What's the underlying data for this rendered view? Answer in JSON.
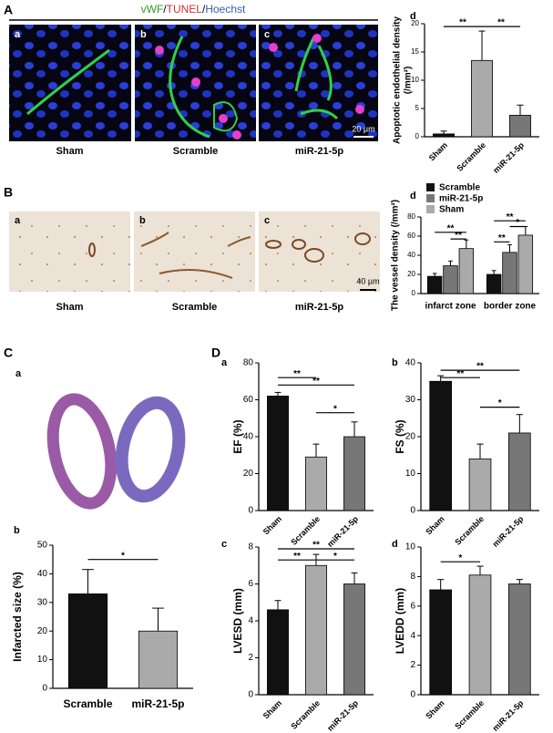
{
  "figure": {
    "A": {
      "letter": "A",
      "stain": [
        "vWF",
        "/",
        "TUNEL",
        "/",
        "Hoechst"
      ],
      "stain_colors": [
        "#2a9d2a",
        "#000000",
        "#d0302f",
        "#000000",
        "#2f5fb3"
      ],
      "images": [
        {
          "letter": "a",
          "caption": "Sham"
        },
        {
          "letter": "b",
          "caption": "Scramble"
        },
        {
          "letter": "c",
          "caption": "miR-21-5p"
        }
      ],
      "scale": "20 µm"
    },
    "B": {
      "letter": "B",
      "images": [
        {
          "letter": "a",
          "caption": "Sham"
        },
        {
          "letter": "b",
          "caption": "Scramble"
        },
        {
          "letter": "c",
          "caption": "miR-21-5p"
        }
      ],
      "scale": "40 µm"
    },
    "C": {
      "letter": "C",
      "image_letter": "a"
    },
    "D": {
      "letter": "D"
    }
  },
  "chart_data": [
    {
      "type": "bar",
      "panel": "d",
      "ylabel": [
        "Apoptotic endothelial density",
        "(/mm²)"
      ],
      "categories": [
        "Sham",
        "Scramble",
        "miR-21-5p"
      ],
      "values": [
        0.5,
        13.5,
        3.8
      ],
      "errors": [
        0.5,
        5.2,
        1.8
      ],
      "colors": [
        "#111111",
        "#aaaaaa",
        "#777777"
      ],
      "ylim": [
        0,
        20
      ],
      "yticks": [
        0,
        5,
        10,
        15,
        20
      ],
      "xlabel_rotate": true,
      "annotations": [
        {
          "text": "**",
          "from": 0,
          "to": 1,
          "y": 19.5
        },
        {
          "text": "**",
          "from": 1,
          "to": 2,
          "y": 19.5
        }
      ]
    },
    {
      "type": "grouped_bar",
      "panel": "d",
      "ylabel": "The vessel density  (/mm²)",
      "categories": [
        "infarct zone",
        "border zone"
      ],
      "series": [
        {
          "name": "Scramble",
          "color": "#111111",
          "values": [
            18,
            20
          ],
          "errors": [
            3,
            4
          ]
        },
        {
          "name": "miR-21-5p",
          "color": "#777777",
          "values": [
            29,
            43
          ],
          "errors": [
            5,
            8
          ]
        },
        {
          "name": "Sham",
          "color": "#aaaaaa",
          "values": [
            47,
            61
          ],
          "errors": [
            9,
            9
          ]
        }
      ],
      "ylim": [
        0,
        80
      ],
      "yticks": [
        0,
        20,
        40,
        60,
        80
      ],
      "xlabel_rotate": false,
      "legend": "top-left",
      "annotations": [
        {
          "text": "**",
          "group": 0,
          "from": 0,
          "to": 2,
          "y": 64
        },
        {
          "text": "**",
          "group": 0,
          "from": 1,
          "to": 2,
          "y": 57
        },
        {
          "text": "**",
          "group": 1,
          "from": 0,
          "to": 1,
          "y": 54
        },
        {
          "text": "**",
          "group": 1,
          "from": 0,
          "to": 2,
          "y": 76
        },
        {
          "text": "*",
          "group": 1,
          "from": 1,
          "to": 2,
          "y": 70
        }
      ]
    },
    {
      "type": "bar",
      "panel": "b",
      "ylabel": "Infarcted size (%)",
      "categories": [
        "Scramble",
        "miR-21-5p"
      ],
      "values": [
        33,
        20
      ],
      "errors": [
        8.5,
        8
      ],
      "colors": [
        "#111111",
        "#aaaaaa"
      ],
      "ylim": [
        0,
        50
      ],
      "yticks": [
        0,
        10,
        20,
        30,
        40,
        50
      ],
      "xlabel_rotate": false,
      "annotations": [
        {
          "text": "*",
          "from": 0,
          "to": 1,
          "y": 45
        }
      ]
    },
    {
      "type": "bar",
      "panel": "a",
      "ylabel": "EF (%)",
      "categories": [
        "Sham",
        "Scramble",
        "miR-21-5p"
      ],
      "values": [
        62,
        29,
        40
      ],
      "errors": [
        2,
        7,
        8
      ],
      "colors": [
        "#111111",
        "#aaaaaa",
        "#777777"
      ],
      "ylim": [
        0,
        80
      ],
      "yticks": [
        0,
        20,
        40,
        60,
        80
      ],
      "xlabel_rotate": true,
      "annotations": [
        {
          "text": "**",
          "from": 0,
          "to": 1,
          "y": 72
        },
        {
          "text": "**",
          "from": 0,
          "to": 2,
          "y": 68
        },
        {
          "text": "*",
          "from": 1,
          "to": 2,
          "y": 53
        }
      ]
    },
    {
      "type": "bar",
      "panel": "b",
      "ylabel": "FS (%)",
      "categories": [
        "Sham",
        "Scramble",
        "miR-21-5p"
      ],
      "values": [
        35,
        14,
        21
      ],
      "errors": [
        1.5,
        4,
        5
      ],
      "colors": [
        "#111111",
        "#aaaaaa",
        "#777777"
      ],
      "ylim": [
        0,
        40
      ],
      "yticks": [
        0,
        10,
        20,
        30,
        40
      ],
      "xlabel_rotate": true,
      "annotations": [
        {
          "text": "**",
          "from": 0,
          "to": 1,
          "y": 36
        },
        {
          "text": "**",
          "from": 0,
          "to": 2,
          "y": 38
        },
        {
          "text": "*",
          "from": 1,
          "to": 2,
          "y": 28
        }
      ]
    },
    {
      "type": "bar",
      "panel": "c",
      "ylabel": "LVESD (mm)",
      "categories": [
        "Sham",
        "Scramble",
        "miR-21-5p"
      ],
      "values": [
        4.6,
        7,
        6
      ],
      "errors": [
        0.5,
        0.6,
        0.6
      ],
      "colors": [
        "#111111",
        "#aaaaaa",
        "#777777"
      ],
      "ylim": [
        0,
        8
      ],
      "yticks": [
        0,
        2,
        4,
        6,
        8
      ],
      "xlabel_rotate": true,
      "annotations": [
        {
          "text": "**",
          "from": 0,
          "to": 2,
          "y": 7.9
        },
        {
          "text": "**",
          "from": 0,
          "to": 1,
          "y": 7.3
        },
        {
          "text": "*",
          "from": 1,
          "to": 2,
          "y": 7.3
        }
      ]
    },
    {
      "type": "bar",
      "panel": "d",
      "ylabel": "LVEDD (mm)",
      "categories": [
        "Sham",
        "Scramble",
        "miR-21-5p"
      ],
      "values": [
        7.1,
        8.1,
        7.5
      ],
      "errors": [
        0.7,
        0.6,
        0.3
      ],
      "colors": [
        "#111111",
        "#aaaaaa",
        "#777777"
      ],
      "ylim": [
        0,
        10
      ],
      "yticks": [
        0,
        2,
        4,
        6,
        8,
        10
      ],
      "xlabel_rotate": true,
      "annotations": [
        {
          "text": "*",
          "from": 0,
          "to": 1,
          "y": 9
        }
      ]
    }
  ]
}
